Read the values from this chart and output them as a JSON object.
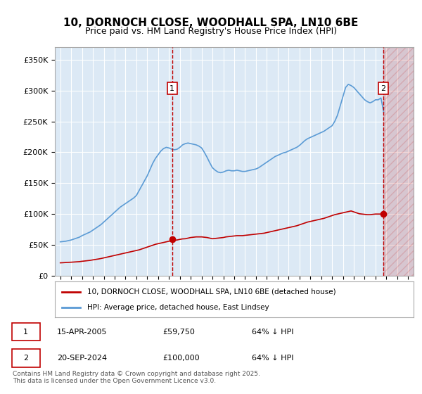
{
  "title_line1": "10, DORNOCH CLOSE, WOODHALL SPA, LN10 6BE",
  "title_line2": "Price paid vs. HM Land Registry's House Price Index (HPI)",
  "ylabel": "",
  "background_color": "#ffffff",
  "plot_bg_color": "#dce9f5",
  "grid_color": "#ffffff",
  "hpi_color": "#5b9bd5",
  "price_color": "#c00000",
  "sale1_date_x": 2005.29,
  "sale1_price": 59750,
  "sale1_label": "1",
  "sale2_date_x": 2024.72,
  "sale2_price": 100000,
  "sale2_label": "2",
  "xmin": 1994.5,
  "xmax": 2027.5,
  "ymin": 0,
  "ymax": 370000,
  "yticks": [
    0,
    50000,
    100000,
    150000,
    200000,
    250000,
    300000,
    350000
  ],
  "ytick_labels": [
    "£0",
    "£50K",
    "£100K",
    "£150K",
    "£200K",
    "£250K",
    "£300K",
    "£350K"
  ],
  "xticks": [
    1995,
    1996,
    1997,
    1998,
    1999,
    2000,
    2001,
    2002,
    2003,
    2004,
    2005,
    2006,
    2007,
    2008,
    2009,
    2010,
    2011,
    2012,
    2013,
    2014,
    2015,
    2016,
    2017,
    2018,
    2019,
    2020,
    2021,
    2022,
    2023,
    2024,
    2025,
    2026,
    2027
  ],
  "legend_line1": "10, DORNOCH CLOSE, WOODHALL SPA, LN10 6BE (detached house)",
  "legend_line2": "HPI: Average price, detached house, East Lindsey",
  "footnote1": "Contains HM Land Registry data © Crown copyright and database right 2025.",
  "footnote2": "This data is licensed under the Open Government Licence v3.0.",
  "table_row1": [
    "1",
    "15-APR-2005",
    "£59,750",
    "64% ↓ HPI"
  ],
  "table_row2": [
    "2",
    "20-SEP-2024",
    "£100,000",
    "64% ↓ HPI"
  ],
  "hpi_x": [
    1995.0,
    1995.25,
    1995.5,
    1995.75,
    1996.0,
    1996.25,
    1996.5,
    1996.75,
    1997.0,
    1997.25,
    1997.5,
    1997.75,
    1998.0,
    1998.25,
    1998.5,
    1998.75,
    1999.0,
    1999.25,
    1999.5,
    1999.75,
    2000.0,
    2000.25,
    2000.5,
    2000.75,
    2001.0,
    2001.25,
    2001.5,
    2001.75,
    2002.0,
    2002.25,
    2002.5,
    2002.75,
    2003.0,
    2003.25,
    2003.5,
    2003.75,
    2004.0,
    2004.25,
    2004.5,
    2004.75,
    2005.0,
    2005.25,
    2005.5,
    2005.75,
    2006.0,
    2006.25,
    2006.5,
    2006.75,
    2007.0,
    2007.25,
    2007.5,
    2007.75,
    2008.0,
    2008.25,
    2008.5,
    2008.75,
    2009.0,
    2009.25,
    2009.5,
    2009.75,
    2010.0,
    2010.25,
    2010.5,
    2010.75,
    2011.0,
    2011.25,
    2011.5,
    2011.75,
    2012.0,
    2012.25,
    2012.5,
    2012.75,
    2013.0,
    2013.25,
    2013.5,
    2013.75,
    2014.0,
    2014.25,
    2014.5,
    2014.75,
    2015.0,
    2015.25,
    2015.5,
    2015.75,
    2016.0,
    2016.25,
    2016.5,
    2016.75,
    2017.0,
    2017.25,
    2017.5,
    2017.75,
    2018.0,
    2018.25,
    2018.5,
    2018.75,
    2019.0,
    2019.25,
    2019.5,
    2019.75,
    2020.0,
    2020.25,
    2020.5,
    2020.75,
    2021.0,
    2021.25,
    2021.5,
    2021.75,
    2022.0,
    2022.25,
    2022.5,
    2022.75,
    2023.0,
    2023.25,
    2023.5,
    2023.75,
    2024.0,
    2024.25,
    2024.5,
    2024.75
  ],
  "hpi_y": [
    55000,
    55500,
    56000,
    57000,
    58000,
    59500,
    61000,
    62500,
    65000,
    67000,
    69000,
    71000,
    74000,
    77000,
    80000,
    83000,
    87000,
    91000,
    95000,
    99000,
    103000,
    107000,
    111000,
    114000,
    117000,
    120000,
    123000,
    126000,
    130000,
    138000,
    146000,
    154000,
    162000,
    172000,
    182000,
    190000,
    196000,
    202000,
    206000,
    208000,
    207000,
    205000,
    204000,
    205000,
    208000,
    212000,
    214000,
    215000,
    214000,
    213000,
    212000,
    210000,
    207000,
    200000,
    192000,
    183000,
    175000,
    171000,
    168000,
    167000,
    168000,
    170000,
    171000,
    170000,
    170000,
    171000,
    170000,
    169000,
    169000,
    170000,
    171000,
    172000,
    173000,
    175000,
    178000,
    181000,
    184000,
    187000,
    190000,
    193000,
    195000,
    197000,
    199000,
    200000,
    202000,
    204000,
    206000,
    208000,
    211000,
    215000,
    219000,
    222000,
    224000,
    226000,
    228000,
    230000,
    232000,
    234000,
    237000,
    240000,
    243000,
    250000,
    260000,
    275000,
    290000,
    305000,
    310000,
    308000,
    305000,
    300000,
    295000,
    290000,
    285000,
    282000,
    280000,
    282000,
    285000,
    285000,
    288000,
    265000
  ],
  "price_x": [
    1995.0,
    1995.25,
    1995.5,
    1995.75,
    1996.0,
    1996.25,
    1996.5,
    1996.75,
    1997.0,
    1997.25,
    1997.5,
    1997.75,
    1998.0,
    1998.25,
    1998.5,
    1998.75,
    1999.0,
    1999.25,
    1999.5,
    1999.75,
    2000.0,
    2000.25,
    2000.5,
    2000.75,
    2001.0,
    2001.25,
    2001.5,
    2001.75,
    2002.0,
    2002.25,
    2002.5,
    2002.75,
    2003.0,
    2003.25,
    2003.5,
    2003.75,
    2004.0,
    2004.25,
    2004.5,
    2004.75,
    2005.0,
    2005.25,
    2005.5,
    2005.75,
    2006.0,
    2006.25,
    2006.5,
    2006.75,
    2007.0,
    2007.25,
    2007.5,
    2007.75,
    2008.0,
    2008.25,
    2008.5,
    2008.75,
    2009.0,
    2009.25,
    2009.5,
    2009.75,
    2010.0,
    2010.25,
    2010.5,
    2010.75,
    2011.0,
    2011.25,
    2011.5,
    2011.75,
    2012.0,
    2012.25,
    2012.5,
    2012.75,
    2013.0,
    2013.25,
    2013.5,
    2013.75,
    2014.0,
    2014.25,
    2014.5,
    2014.75,
    2015.0,
    2015.25,
    2015.5,
    2015.75,
    2016.0,
    2016.25,
    2016.5,
    2016.75,
    2017.0,
    2017.25,
    2017.5,
    2017.75,
    2018.0,
    2018.25,
    2018.5,
    2018.75,
    2019.0,
    2019.25,
    2019.5,
    2019.75,
    2020.0,
    2020.25,
    2020.5,
    2020.75,
    2021.0,
    2021.25,
    2021.5,
    2021.75,
    2022.0,
    2022.25,
    2022.5,
    2022.75,
    2023.0,
    2023.25,
    2023.5,
    2023.75,
    2024.0,
    2024.25,
    2024.5,
    2024.75
  ],
  "price_y": [
    21000,
    21200,
    21500,
    21800,
    22000,
    22300,
    22600,
    22900,
    23500,
    24000,
    24500,
    25000,
    25800,
    26500,
    27200,
    28000,
    29000,
    30000,
    31000,
    32000,
    33000,
    34000,
    35000,
    36000,
    37000,
    38000,
    39000,
    40000,
    41000,
    42000,
    43500,
    45000,
    46500,
    48000,
    49500,
    51000,
    52000,
    53000,
    54000,
    55000,
    56000,
    57000,
    57500,
    58000,
    59000,
    59750,
    60000,
    61000,
    62000,
    62500,
    63000,
    63000,
    63000,
    62500,
    62000,
    61000,
    60000,
    60500,
    61000,
    61500,
    62000,
    63000,
    63500,
    64000,
    64500,
    65000,
    65000,
    65000,
    65500,
    66000,
    66500,
    67000,
    67500,
    68000,
    68500,
    69000,
    70000,
    71000,
    72000,
    73000,
    74000,
    75000,
    76000,
    77000,
    78000,
    79000,
    80000,
    81000,
    82500,
    84000,
    85500,
    87000,
    88000,
    89000,
    90000,
    91000,
    92000,
    93000,
    94500,
    96000,
    97500,
    99000,
    100000,
    101000,
    102000,
    103000,
    104000,
    105000,
    103500,
    102000,
    100500,
    100000,
    99500,
    99000,
    99000,
    99500,
    100000,
    100000,
    100000,
    100000
  ]
}
